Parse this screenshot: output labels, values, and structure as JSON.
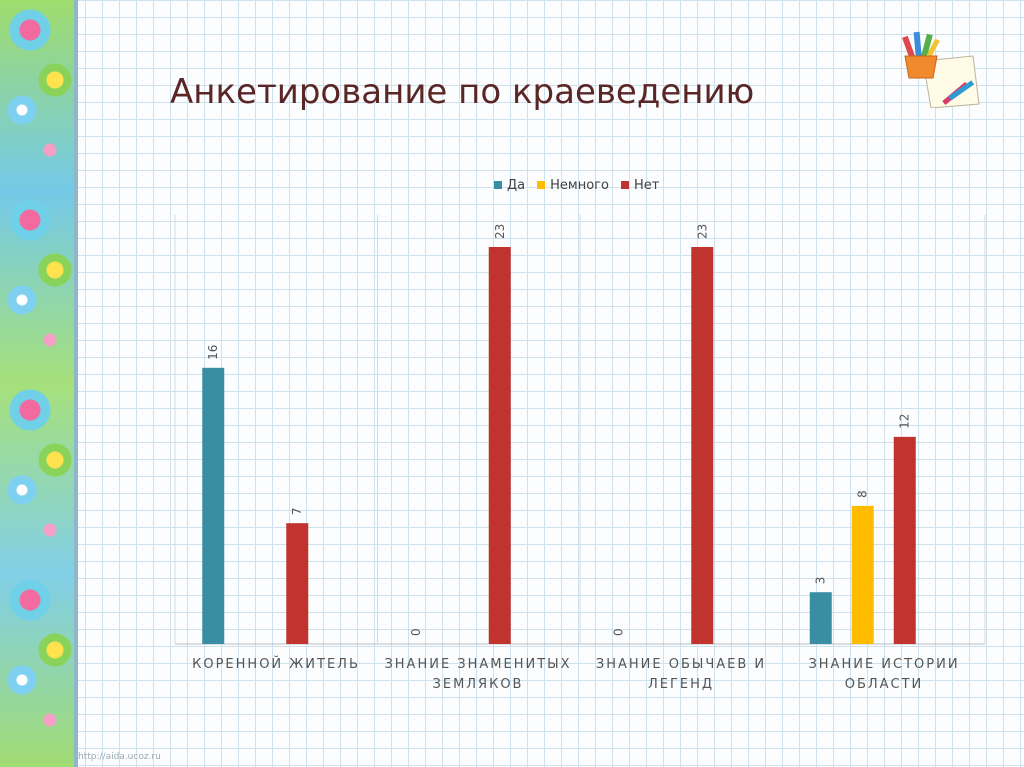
{
  "title": "Анкетирование по краеведению",
  "footer": "http://aida.ucoz.ru",
  "colors": {
    "da": "#3a8ea4",
    "nemnogo": "#ffbb00",
    "net": "#c0332f",
    "title": "#5a2626"
  },
  "icons": {
    "decoration": "pencil-cup-icon"
  },
  "chart_data": {
    "type": "bar",
    "categories": [
      "КОРЕННОЙ ЖИТЕЛЬ",
      "ЗНАНИЕ ЗНАМЕНИТЫХ ЗЕМЛЯКОВ",
      "ЗНАНИЕ ОБЫЧАЕВ И ЛЕГЕНД",
      "ЗНАНИЕ ИСТОРИИ ОБЛАСТИ"
    ],
    "series": [
      {
        "name": "Да",
        "values": [
          16,
          0,
          0,
          3
        ],
        "color": "#3a8ea4"
      },
      {
        "name": "Немного",
        "values": [
          null,
          null,
          null,
          8
        ],
        "color": "#ffbb00"
      },
      {
        "name": "Нет",
        "values": [
          7,
          23,
          23,
          12
        ],
        "color": "#c0332f"
      }
    ],
    "data_labels": [
      [
        "16",
        "0",
        "0",
        "3"
      ],
      [
        "",
        "",
        "",
        "8"
      ],
      [
        "7",
        "23",
        "23",
        "12"
      ]
    ],
    "ylim": [
      0,
      23
    ],
    "grid": false,
    "legend_position": "top"
  }
}
